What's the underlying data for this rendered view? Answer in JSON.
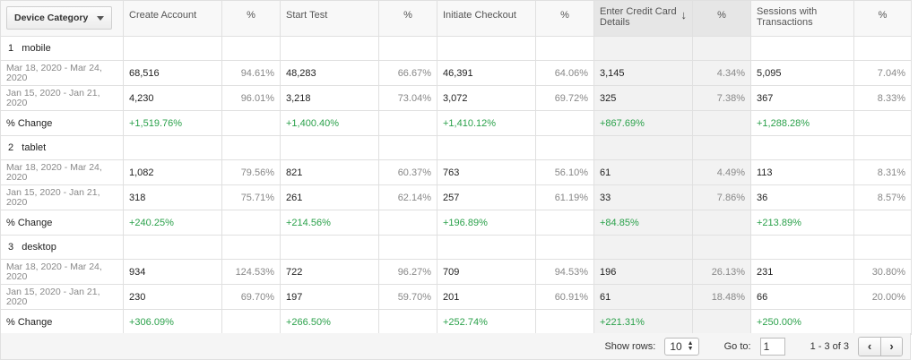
{
  "header": {
    "dimension": "Device Category",
    "metrics": [
      {
        "label": "Create Account",
        "pct": "%"
      },
      {
        "label": "Start Test",
        "pct": "%"
      },
      {
        "label": "Initiate Checkout",
        "pct": "%"
      },
      {
        "label": "Enter Credit Card Details",
        "pct": "%"
      },
      {
        "label": "Sessions with Transactions",
        "pct": "%"
      }
    ]
  },
  "groups": [
    {
      "name": "1   mobile",
      "rows": [
        {
          "date": "Mar 18, 2020 - Mar 24, 2020",
          "cells": [
            [
              "68,516",
              "94.61%"
            ],
            [
              "48,283",
              "66.67%"
            ],
            [
              "46,391",
              "64.06%"
            ],
            [
              "3,145",
              "4.34%"
            ],
            [
              "5,095",
              "7.04%"
            ]
          ]
        },
        {
          "date": "Jan 15, 2020 - Jan 21, 2020",
          "cells": [
            [
              "4,230",
              "96.01%"
            ],
            [
              "3,218",
              "73.04%"
            ],
            [
              "3,072",
              "69.72%"
            ],
            [
              "325",
              "7.38%"
            ],
            [
              "367",
              "8.33%"
            ]
          ]
        }
      ],
      "change_label": "% Change",
      "changes": [
        "+1,519.76%",
        "+1,400.40%",
        "+1,410.12%",
        "+867.69%",
        "+1,288.28%"
      ]
    },
    {
      "name": "2   tablet",
      "rows": [
        {
          "date": "Mar 18, 2020 - Mar 24, 2020",
          "cells": [
            [
              "1,082",
              "79.56%"
            ],
            [
              "821",
              "60.37%"
            ],
            [
              "763",
              "56.10%"
            ],
            [
              "61",
              "4.49%"
            ],
            [
              "113",
              "8.31%"
            ]
          ]
        },
        {
          "date": "Jan 15, 2020 - Jan 21, 2020",
          "cells": [
            [
              "318",
              "75.71%"
            ],
            [
              "261",
              "62.14%"
            ],
            [
              "257",
              "61.19%"
            ],
            [
              "33",
              "7.86%"
            ],
            [
              "36",
              "8.57%"
            ]
          ]
        }
      ],
      "change_label": "% Change",
      "changes": [
        "+240.25%",
        "+214.56%",
        "+196.89%",
        "+84.85%",
        "+213.89%"
      ]
    },
    {
      "name": "3   desktop",
      "rows": [
        {
          "date": "Mar 18, 2020 - Mar 24, 2020",
          "cells": [
            [
              "934",
              "124.53%"
            ],
            [
              "722",
              "96.27%"
            ],
            [
              "709",
              "94.53%"
            ],
            [
              "196",
              "26.13%"
            ],
            [
              "231",
              "30.80%"
            ]
          ]
        },
        {
          "date": "Jan 15, 2020 - Jan 21, 2020",
          "cells": [
            [
              "230",
              "69.70%"
            ],
            [
              "197",
              "59.70%"
            ],
            [
              "201",
              "60.91%"
            ],
            [
              "61",
              "18.48%"
            ],
            [
              "66",
              "20.00%"
            ]
          ]
        }
      ],
      "change_label": "% Change",
      "changes": [
        "+306.09%",
        "+266.50%",
        "+252.74%",
        "+221.31%",
        "+250.00%"
      ]
    }
  ],
  "footer": {
    "show_rows_label": "Show rows:",
    "show_rows_value": "10",
    "goto_label": "Go to:",
    "goto_value": "1",
    "range": "1 - 3 of 3"
  },
  "colors": {
    "positive": "#2ba14b",
    "sorted_header": "#e6e6e6"
  },
  "icons": {
    "sort": "arrow-down-icon",
    "prev": "chevron-left-icon",
    "next": "chevron-right-icon"
  }
}
